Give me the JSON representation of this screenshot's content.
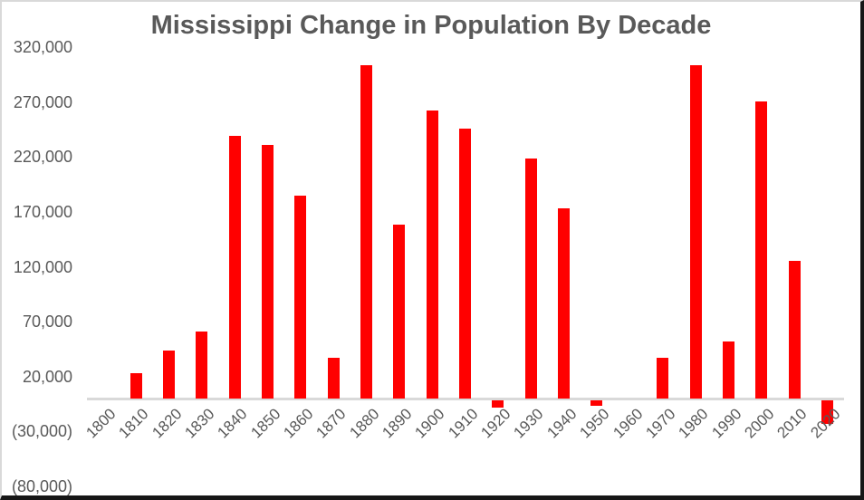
{
  "chart_data": {
    "type": "bar",
    "title": "Mississippi Change in Population By Decade",
    "categories": [
      "1800",
      "1810",
      "1820",
      "1830",
      "1840",
      "1850",
      "1860",
      "1870",
      "1880",
      "1890",
      "1900",
      "1910",
      "1920",
      "1930",
      "1940",
      "1950",
      "1960",
      "1970",
      "1980",
      "1990",
      "2000",
      "2010",
      "2020"
    ],
    "values": [
      0,
      23000,
      44000,
      61000,
      239000,
      231000,
      185000,
      37000,
      304000,
      158000,
      262000,
      246000,
      -7000,
      219000,
      173000,
      -5000,
      0,
      37000,
      304000,
      52000,
      271000,
      125000,
      -22000
    ],
    "xlabel": "",
    "ylabel": "",
    "ylim": [
      -80000,
      320000
    ],
    "ytick_step": 50000,
    "yticks": [
      {
        "value": 320000,
        "label": "320,000"
      },
      {
        "value": 270000,
        "label": "270,000"
      },
      {
        "value": 220000,
        "label": "220,000"
      },
      {
        "value": 170000,
        "label": "170,000"
      },
      {
        "value": 120000,
        "label": "120,000"
      },
      {
        "value": 70000,
        "label": "70,000"
      },
      {
        "value": 20000,
        "label": "20,000"
      },
      {
        "value": -30000,
        "label": "(30,000)"
      },
      {
        "value": -80000,
        "label": "(80,000)"
      }
    ],
    "grid": false,
    "legend": false,
    "x_tick_rotation_deg": 45,
    "negative_label_format": "parentheses"
  },
  "colors": {
    "bar": "#ff0000",
    "title_text": "#595959",
    "tick_text": "#595959",
    "axis_line": "#d9d9d9",
    "background": "#ffffff",
    "frame_light": "#d9d9d9",
    "frame_dark": "#161616"
  }
}
